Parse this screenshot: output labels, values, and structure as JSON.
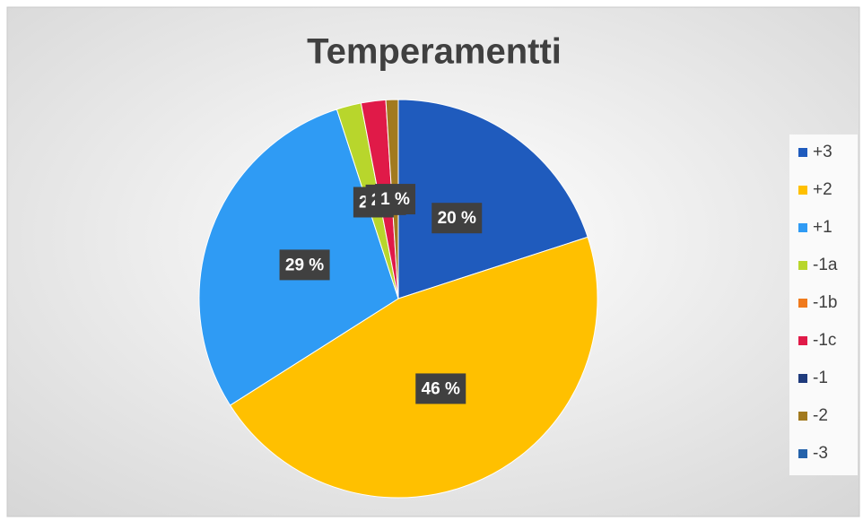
{
  "chart_data": {
    "type": "pie",
    "title": "Temperamentti",
    "categories": [
      "+3",
      "+2",
      "+1",
      "-1a",
      "-1b",
      "-1c",
      "-1",
      "-2",
      "-3"
    ],
    "values": [
      20,
      46,
      29,
      2,
      0,
      2,
      0,
      1,
      0
    ],
    "value_labels": [
      "20 %",
      "46 %",
      "29 %",
      "2 %",
      null,
      "2 %",
      null,
      "1 %",
      null
    ],
    "colors": [
      "#1f5bbd",
      "#ffc000",
      "#2f9bf4",
      "#b8d62c",
      "#f07a1c",
      "#e01a48",
      "#1f3b7c",
      "#a27a1e",
      "#2462aa"
    ],
    "legend": "right"
  }
}
